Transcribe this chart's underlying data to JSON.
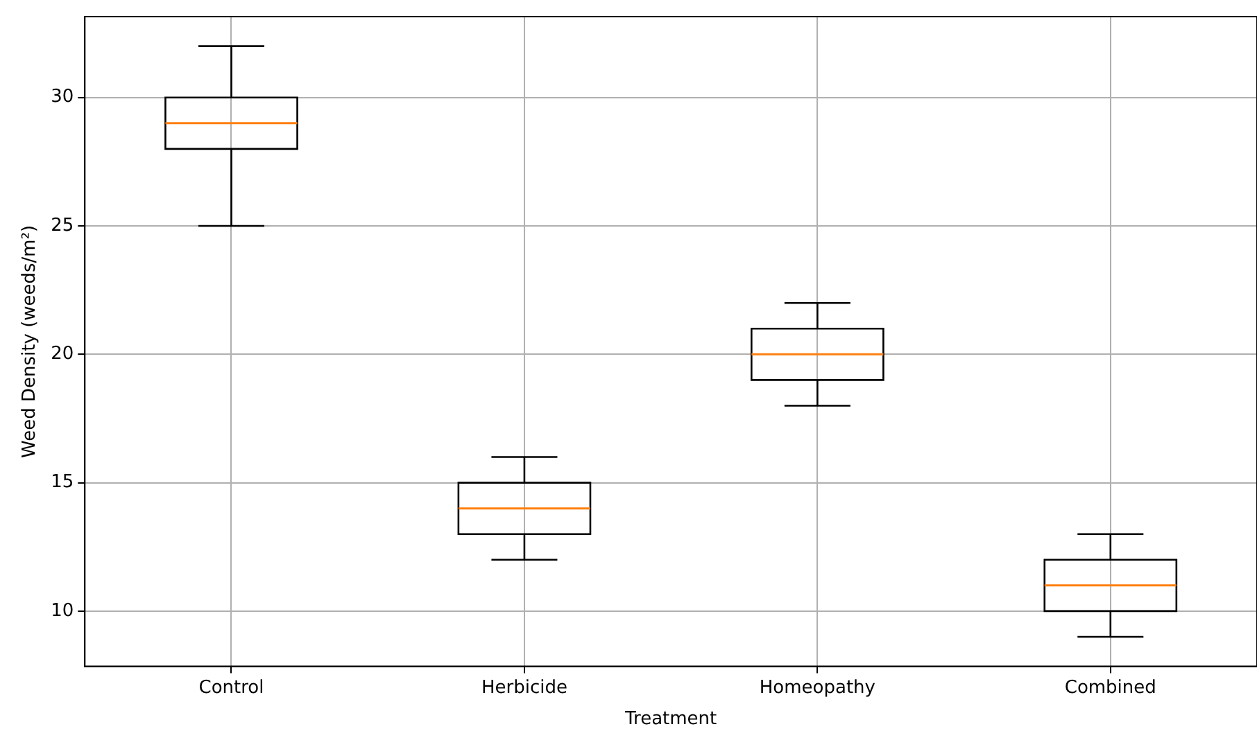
{
  "chart_data": {
    "type": "box",
    "xlabel": "Treatment",
    "ylabel": "Weed Density (weeds/m²)",
    "categories": [
      "Control",
      "Herbicide",
      "Homeopathy",
      "Combined"
    ],
    "color": "#000000",
    "boxes": [
      {
        "low": 25,
        "q1": 28,
        "median": 29,
        "q3": 30,
        "high": 32
      },
      {
        "low": 12,
        "q1": 13,
        "median": 14,
        "q3": 15,
        "high": 16
      },
      {
        "low": 18,
        "q1": 19,
        "median": 20,
        "q3": 21,
        "high": 22
      },
      {
        "low": 9,
        "q1": 10,
        "median": 11,
        "q3": 12,
        "high": 13
      }
    ],
    "ylim": [
      7.85,
      33.15
    ],
    "yticks": [
      10,
      15,
      20,
      25,
      30
    ],
    "grid": true,
    "legend": false
  }
}
